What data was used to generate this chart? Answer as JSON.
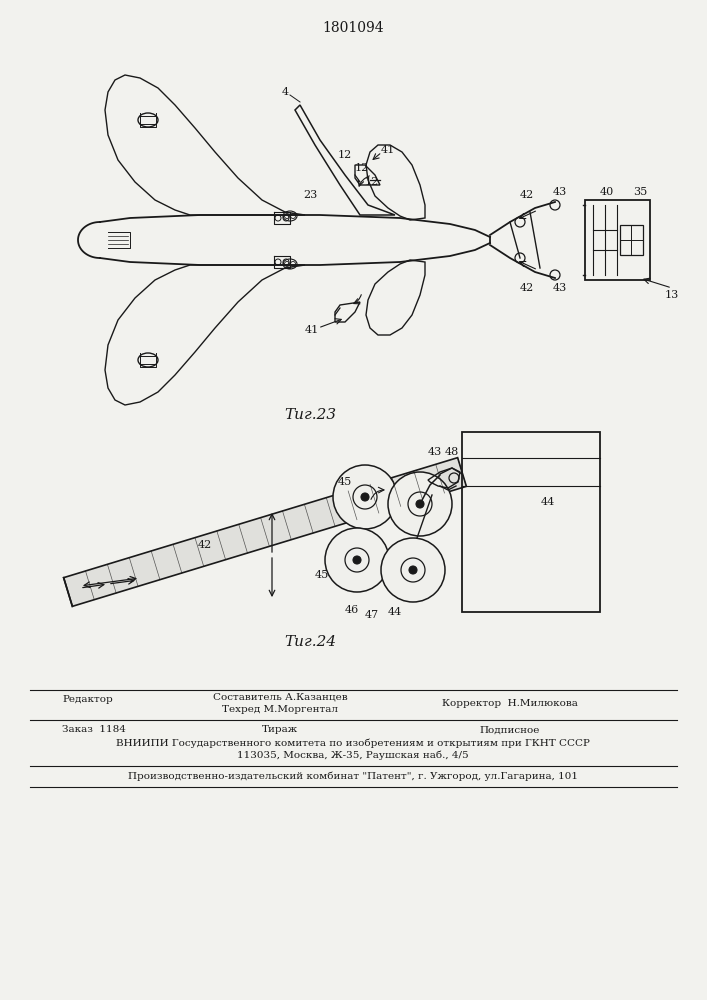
{
  "title": "1801094",
  "bg_color": "#f2f2ee",
  "line_color": "#1a1a1a",
  "fig23_caption": "Τиг.23",
  "fig24_caption": "Τиг.24",
  "footer": {
    "row1_left": "Редактор",
    "row1_mid1": "Составитель А.Казанцев",
    "row1_mid2": "Техред М.Моргентал",
    "row1_right": "Корректор  Н.Милюкова",
    "row2_left": "Заказ  1184",
    "row2_mid": "Тираж",
    "row2_right": "Подписное",
    "row3": "ВНИИПИ Государственного комитета по изобретениям и открытиям при ГКНТ СССР",
    "row4": "113035, Москва, Ж-35, Раушская наб., 4/5",
    "row5": "Производственно-издательский комбинат \"Патент\", г. Ужгород, ул.Гагарина, 101"
  }
}
